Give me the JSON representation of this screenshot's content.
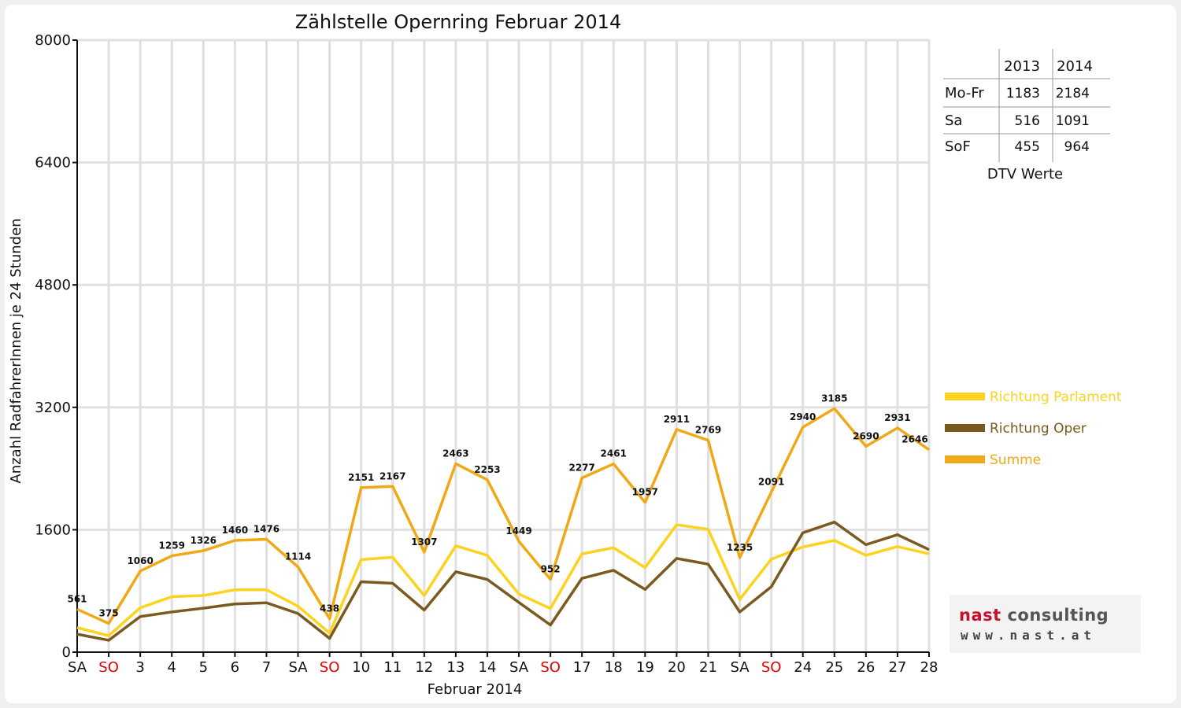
{
  "chart_data": {
    "type": "line",
    "title": "Zählstelle Opernring Februar 2014",
    "xlabel": "Februar 2014",
    "ylabel": "Anzahl RadfahrerInnen je 24 Stunden",
    "ylim": [
      0,
      8000
    ],
    "yticks": [
      "0",
      "1600",
      "3200",
      "4800",
      "6400",
      "8000"
    ],
    "grid": true,
    "legend_position": "right",
    "categories": [
      "SA",
      "SO",
      "3",
      "4",
      "5",
      "6",
      "7",
      "SA",
      "SO",
      "10",
      "11",
      "12",
      "13",
      "14",
      "SA",
      "SO",
      "17",
      "18",
      "19",
      "20",
      "21",
      "SA",
      "SO",
      "24",
      "25",
      "26",
      "27",
      "28"
    ],
    "red_categories": [
      1,
      8,
      15,
      22
    ],
    "series": [
      {
        "name": "Richtung Parlament",
        "color": "#FFD21F",
        "values": [
          320,
          215,
          580,
          725,
          740,
          815,
          815,
          600,
          250,
          1210,
          1240,
          740,
          1390,
          1265,
          760,
          570,
          1285,
          1365,
          1105,
          1665,
          1605,
          690,
          1215,
          1375,
          1460,
          1265,
          1380,
          1285
        ]
      },
      {
        "name": "Richtung Oper",
        "color": "#7A5A1E",
        "values": [
          235,
          155,
          465,
          525,
          575,
          630,
          645,
          505,
          180,
          920,
          900,
          550,
          1050,
          950,
          650,
          355,
          965,
          1070,
          820,
          1225,
          1150,
          525,
          855,
          1560,
          1700,
          1405,
          1535,
          1340
        ]
      },
      {
        "name": "Summe",
        "color": "#F0A817",
        "values": [
          561,
          375,
          1060,
          1259,
          1326,
          1460,
          1476,
          1114,
          438,
          2151,
          2167,
          1307,
          2463,
          2253,
          1449,
          952,
          2277,
          2461,
          1957,
          2911,
          2769,
          1235,
          2091,
          2940,
          3185,
          2690,
          2931,
          2646
        ]
      }
    ],
    "data_labels": [
      "561",
      "375",
      "1060",
      "1259",
      "1326",
      "1460",
      "1476",
      "1114",
      "438",
      "2151",
      "2167",
      "1307",
      "2463",
      "2253",
      "1449",
      "952",
      "2277",
      "2461",
      "1957",
      "2911",
      "2769",
      "1235",
      "2091",
      "2940",
      "3185",
      "2690",
      "2931",
      "2646"
    ]
  },
  "dtv_table": {
    "header": [
      "",
      "2013",
      "2014"
    ],
    "rows": [
      [
        "Mo-Fr",
        "1183",
        "2184"
      ],
      [
        "Sa",
        "516",
        "1091"
      ],
      [
        "SoF",
        "455",
        "964"
      ]
    ],
    "caption": "DTV Werte"
  },
  "logo": {
    "brand_part1": "nast",
    "brand_part2": " consulting",
    "url": "www.nast.at"
  }
}
